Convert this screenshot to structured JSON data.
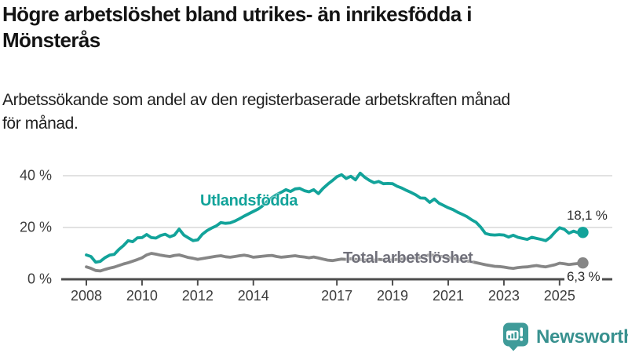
{
  "header": {
    "title_lines": [
      "Högre arbetslöshet bland utrikes- än inrikesfödda i",
      "Mönsterås"
    ],
    "subtitle_lines": [
      "Arbetssökande som andel av den registerbaserade arbetskraften månad",
      "för månad."
    ]
  },
  "chart_data": {
    "type": "line",
    "title": "Högre arbetslöshet bland utrikes- än inrikesfödda i Mönsterås",
    "subtitle": "Arbetssökande som andel av den registerbaserade arbetskraften månad för månad.",
    "xlabel": "",
    "ylabel": "",
    "grid": "horizontal-only",
    "legend_position": "labels-on-chart",
    "xlim": [
      2007.2,
      2026.9
    ],
    "ylim": [
      0,
      44
    ],
    "x_unit": "year (monthly observations)",
    "y_unit": "percent",
    "x_start": 2008.0,
    "x_step": 0.1667,
    "x_end": 2025.83,
    "x_tick_years": [
      2008,
      2010,
      2012,
      2014,
      2017,
      2019,
      2021,
      2023,
      2025
    ],
    "x_tick_labels": [
      "2008",
      "2010",
      "2012",
      "2014",
      "2017",
      "2019",
      "2021",
      "2023",
      "2025"
    ],
    "y_ticks": [
      {
        "value": 0,
        "label": "0 %"
      },
      {
        "value": 20,
        "label": "20 %"
      },
      {
        "value": 40,
        "label": "40 %"
      }
    ],
    "grid_color": "#d9d9d9",
    "axis_color": "#4d4d4d",
    "tick_label_color": "#3d3d3d",
    "series": [
      {
        "name": "Utlandsfödda",
        "color": "#12a39a",
        "label_color": "#12a39a",
        "end_value": 18.1,
        "end_label": "18,1 %",
        "values": [
          9.4,
          8.8,
          6.6,
          6.9,
          8.3,
          9.3,
          9.6,
          11.5,
          13.0,
          14.9,
          14.5,
          16.0,
          16.1,
          17.3,
          16.1,
          15.9,
          16.9,
          17.4,
          16.4,
          17.1,
          19.4,
          17.1,
          16.0,
          14.9,
          15.2,
          17.4,
          18.8,
          19.8,
          20.6,
          21.9,
          21.6,
          21.8,
          22.5,
          23.4,
          24.4,
          25.3,
          26.2,
          27.1,
          28.4,
          30.1,
          31.5,
          32.7,
          33.6,
          34.6,
          33.9,
          34.9,
          35.1,
          34.2,
          33.8,
          34.6,
          33.1,
          35.1,
          36.7,
          38.1,
          39.6,
          40.4,
          38.9,
          39.8,
          38.4,
          41.0,
          39.4,
          38.2,
          37.3,
          37.8,
          36.9,
          37.0,
          36.9,
          35.9,
          35.2,
          34.3,
          33.5,
          32.6,
          31.4,
          31.3,
          29.7,
          31.0,
          29.4,
          28.5,
          27.6,
          26.9,
          25.9,
          25.1,
          24.2,
          23.0,
          22.0,
          20.1,
          17.7,
          17.2,
          17.1,
          17.2,
          17.1,
          16.3,
          17.0,
          16.2,
          15.8,
          15.4,
          16.2,
          15.8,
          15.4,
          14.9,
          16.2,
          18.2,
          19.9,
          19.3,
          17.8,
          18.6,
          17.9,
          18.1
        ]
      },
      {
        "name": "Total arbetslöshet",
        "color": "#868686",
        "label_color": "#70707a",
        "end_value": 6.3,
        "end_label": "6,3 %",
        "values": [
          4.8,
          4.2,
          3.4,
          3.2,
          3.8,
          4.3,
          4.7,
          5.3,
          5.9,
          6.4,
          7.0,
          7.6,
          8.3,
          9.4,
          10.0,
          9.7,
          9.3,
          9.0,
          8.8,
          9.2,
          9.4,
          8.9,
          8.4,
          8.1,
          7.7,
          8.0,
          8.3,
          8.6,
          8.9,
          9.1,
          8.7,
          8.5,
          8.8,
          9.1,
          9.3,
          9.0,
          8.5,
          8.7,
          8.9,
          9.1,
          9.2,
          8.8,
          8.5,
          8.7,
          8.9,
          9.1,
          8.8,
          8.6,
          8.3,
          8.6,
          8.2,
          7.8,
          7.4,
          7.2,
          7.5,
          7.8,
          7.7,
          7.9,
          7.7,
          7.6,
          7.4,
          7.6,
          7.4,
          7.7,
          7.5,
          7.3,
          7.5,
          7.7,
          7.8,
          8.0,
          8.1,
          8.2,
          8.4,
          9.0,
          9.4,
          9.2,
          8.9,
          8.7,
          8.4,
          8.1,
          7.8,
          7.4,
          7.1,
          6.8,
          6.4,
          6.0,
          5.6,
          5.3,
          5.0,
          4.9,
          4.7,
          4.4,
          4.2,
          4.5,
          4.7,
          4.8,
          5.1,
          5.3,
          5.0,
          4.8,
          5.2,
          5.6,
          6.2,
          6.0,
          5.7,
          5.9,
          6.1,
          6.3
        ]
      }
    ]
  },
  "footer": {
    "brand": "Newsworthy",
    "brand_text_color": "#38918f",
    "brand_icon_color": "#3f9b99"
  }
}
